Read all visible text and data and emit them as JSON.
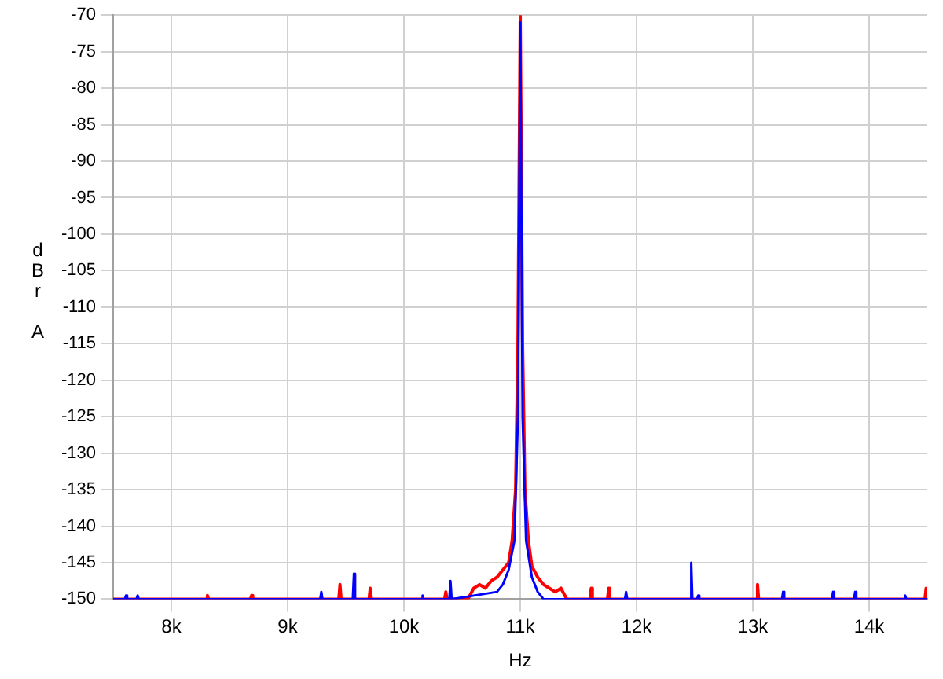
{
  "chart_data": {
    "type": "line",
    "xlabel": "Hz",
    "ylabel": "dBr A",
    "xlim": [
      7500,
      14500
    ],
    "ylim": [
      -150,
      -70
    ],
    "xticks": [
      {
        "value": 8000,
        "label": "8k"
      },
      {
        "value": 9000,
        "label": "9k"
      },
      {
        "value": 10000,
        "label": "10k"
      },
      {
        "value": 11000,
        "label": "11k"
      },
      {
        "value": 12000,
        "label": "12k"
      },
      {
        "value": 13000,
        "label": "13k"
      },
      {
        "value": 14000,
        "label": "14k"
      }
    ],
    "yticks": [
      -150,
      -145,
      -140,
      -135,
      -130,
      -125,
      -120,
      -115,
      -110,
      -105,
      -100,
      -95,
      -90,
      -85,
      -80,
      -75,
      -70
    ],
    "grid": true,
    "marker": "none",
    "line_style": "solid",
    "series": [
      {
        "color": "#0000ff",
        "x": [
          7500,
          7600,
          7610,
          7620,
          7700,
          7710,
          7720,
          9280,
          9290,
          9300,
          9560,
          9570,
          9580,
          9800,
          10150,
          10160,
          10170,
          10390,
          10400,
          10410,
          10800,
          10850,
          10900,
          10950,
          10980,
          11000,
          11020,
          11050,
          11100,
          11150,
          11200,
          11900,
          11910,
          11920,
          12460,
          12470,
          12480,
          12520,
          12530,
          12540,
          13250,
          13260,
          13270,
          13680,
          13690,
          13700,
          13870,
          13880,
          13890,
          14300,
          14310,
          14320,
          14500
        ],
        "values": [
          -150,
          -150,
          -149.5,
          -150,
          -150,
          -149.5,
          -150,
          -150,
          -149,
          -150,
          -150,
          -146.5,
          -150,
          -150,
          -150,
          -149.5,
          -150,
          -150,
          -147.5,
          -150,
          -149,
          -148,
          -146,
          -142,
          -125,
          -71,
          -125,
          -142,
          -147,
          -149,
          -150,
          -150,
          -149,
          -150,
          -150,
          -145,
          -150,
          -150,
          -149.5,
          -150,
          -150,
          -149,
          -150,
          -150,
          -149,
          -150,
          -150,
          -149,
          -150,
          -150,
          -149.5,
          -150,
          -150
        ]
      },
      {
        "color": "#ff0000",
        "x": [
          7500,
          8300,
          8310,
          8320,
          8680,
          8690,
          8700,
          9440,
          9450,
          9460,
          9700,
          9710,
          9720,
          10350,
          10360,
          10370,
          10550,
          10600,
          10650,
          10700,
          10750,
          10800,
          10850,
          10900,
          10930,
          10960,
          10980,
          11000,
          11020,
          11040,
          11070,
          11100,
          11150,
          11200,
          11250,
          11300,
          11350,
          11400,
          11600,
          11610,
          11620,
          11750,
          11760,
          11770,
          13030,
          13040,
          13050,
          14480,
          14490,
          14500
        ],
        "values": [
          -150,
          -150,
          -149.5,
          -150,
          -150,
          -149.5,
          -150,
          -150,
          -148,
          -150,
          -150,
          -148.5,
          -150,
          -150,
          -149,
          -150,
          -150,
          -148.5,
          -148,
          -148.5,
          -147.5,
          -147,
          -146,
          -145,
          -142,
          -135,
          -115,
          -70,
          -115,
          -135,
          -142,
          -145.5,
          -147,
          -148,
          -148.5,
          -149,
          -148.5,
          -150,
          -150,
          -148.5,
          -150,
          -150,
          -148.5,
          -150,
          -150,
          -148,
          -150,
          -150,
          -148.5,
          -150
        ]
      }
    ]
  }
}
